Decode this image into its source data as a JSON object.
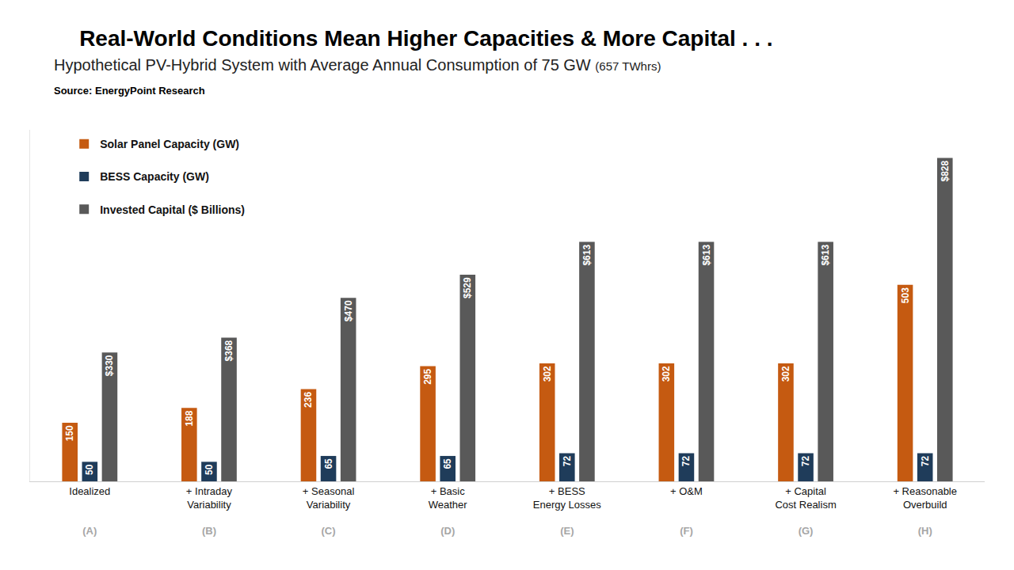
{
  "chart_data": {
    "type": "bar",
    "title": "Real-World Conditions Mean Higher Capacities & More Capital . . .",
    "subtitle": "Hypothetical PV-Hybrid System with Average Annual Consumption of 75 GW (657 TWhrs)",
    "source": "Source: EnergyPoint Research",
    "categories": [
      "Idealized",
      "+ Intraday Variability",
      "+ Seasonal Variability",
      "+ Basic Weather",
      "+ BESS Energy Losses",
      "+ O&M",
      "+ Capital Cost Realism",
      "+ Reasonable Overbuild"
    ],
    "category_letters": [
      "(A)",
      "(B)",
      "(C)",
      "(D)",
      "(E)",
      "(F)",
      "(G)",
      "(H)"
    ],
    "series": [
      {
        "name": "Solar Panel Capacity (GW)",
        "color": "#c55a11",
        "values": [
          150,
          188,
          236,
          295,
          302,
          302,
          302,
          503
        ]
      },
      {
        "name": "BESS Capacity (GW)",
        "color": "#1f3c5a",
        "values": [
          50,
          50,
          65,
          65,
          72,
          72,
          72,
          72
        ]
      },
      {
        "name": "Invested Capital ($ Billions)",
        "color": "#595959",
        "values": [
          330,
          368,
          470,
          529,
          613,
          613,
          613,
          828
        ],
        "value_labels": [
          "$330",
          "$368",
          "$470",
          "$529",
          "$613",
          "$613",
          "$613",
          "$828"
        ]
      }
    ],
    "ylim": [
      0,
      900
    ],
    "tick_labels": "x",
    "grid": false,
    "legend": "top left",
    "data_labels": true
  }
}
